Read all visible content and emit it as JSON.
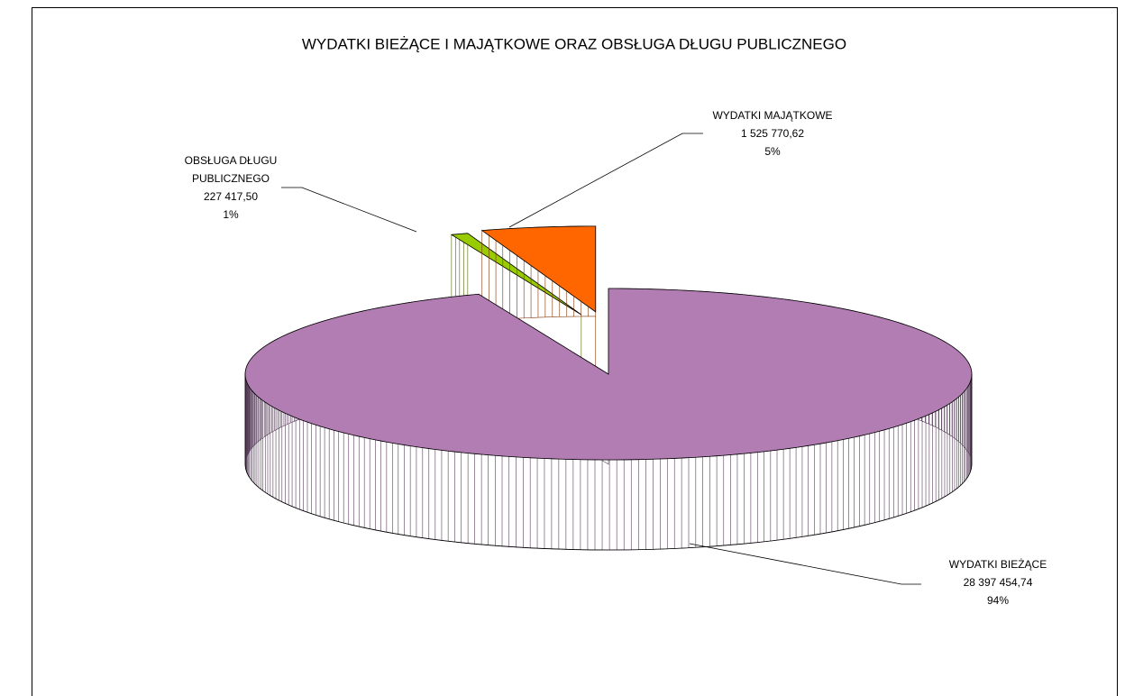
{
  "chart_data": {
    "type": "pie3d",
    "title": "WYDATKI BIEŻĄCE I MAJĄTKOWE ORAZ OBSŁUGA DŁUGU PUBLICZNEGO",
    "categories": [
      "WYDATKI BIEŻĄCE",
      "OBSŁUGA DŁUGU PUBLICZNEGO",
      "WYDATKI MAJĄTKOWE"
    ],
    "values": [
      28397454.74,
      227417.5,
      1525770.62
    ],
    "value_labels": [
      "28 397 454,74",
      "227 417,50",
      "1 525 770,62"
    ],
    "percent_labels": [
      "94%",
      "1%",
      "5%"
    ],
    "colors": [
      "#b27db2",
      "#99cc00",
      "#ff6600"
    ],
    "side_colors": [
      "#573d5a",
      "#4d6600",
      "#7f3300"
    ],
    "exploded": [
      false,
      true,
      true
    ]
  }
}
